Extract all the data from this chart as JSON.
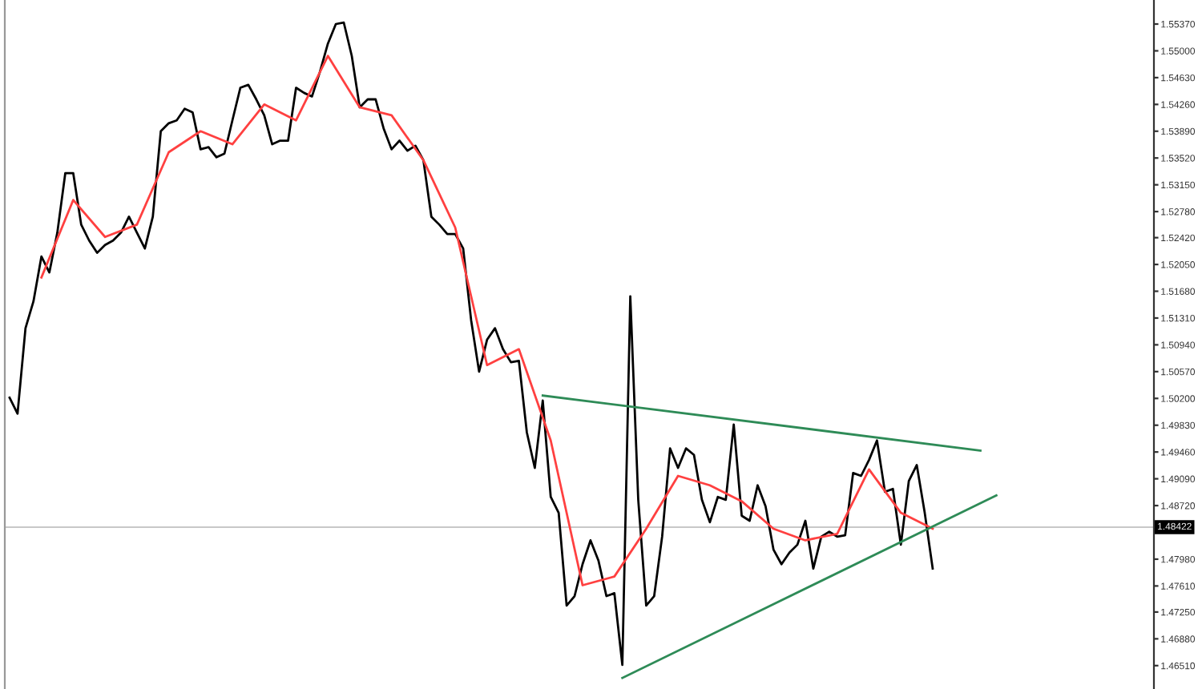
{
  "chart_data": {
    "type": "line",
    "categories": [
      null,
      null,
      null,
      null,
      null,
      null,
      null,
      null,
      null,
      null,
      null,
      null,
      null,
      null,
      null,
      null,
      null,
      null,
      null,
      null,
      null,
      null,
      null,
      null,
      null,
      null,
      null,
      null,
      null,
      null,
      null,
      null,
      null,
      null,
      null,
      null,
      null,
      null,
      null,
      null,
      null,
      null,
      null,
      null,
      null,
      null,
      null,
      null,
      null,
      null,
      null,
      null,
      null,
      null,
      null,
      null,
      null,
      null,
      null,
      null,
      null,
      null,
      null,
      null,
      null,
      null,
      null,
      null,
      null,
      null,
      null,
      null,
      null,
      null,
      null,
      null,
      null,
      null,
      null,
      null,
      null,
      null,
      null,
      null,
      null,
      null,
      null,
      null,
      null,
      null,
      null,
      null,
      null,
      null,
      null,
      null,
      null,
      null,
      null,
      null,
      null,
      null,
      null,
      null,
      null,
      null,
      null,
      null,
      null,
      null,
      null,
      null,
      null,
      null,
      null,
      null,
      null,
      null,
      null,
      null,
      null,
      null,
      null,
      null,
      null
    ],
    "series": [
      {
        "color": "#000000",
        "values": [
          1.5021,
          1.4999,
          1.5117,
          1.5154,
          1.5216,
          1.5194,
          1.5249,
          1.5331,
          1.5331,
          1.526,
          1.5238,
          1.5221,
          1.5232,
          1.5238,
          1.5249,
          1.5271,
          1.5249,
          1.5227,
          1.5271,
          1.5389,
          1.54,
          1.5404,
          1.542,
          1.5415,
          1.5364,
          1.5367,
          1.5353,
          1.5358,
          1.5404,
          1.5449,
          1.5453,
          1.5433,
          1.5411,
          1.5371,
          1.5376,
          1.5376,
          1.5449,
          1.5442,
          1.5437,
          1.5471,
          1.551,
          1.5537,
          1.5539,
          1.5493,
          1.5422,
          1.5433,
          1.5433,
          1.5393,
          1.5364,
          1.5376,
          1.5362,
          1.5369,
          1.5349,
          1.5271,
          1.526,
          1.5247,
          1.5247,
          1.5227,
          1.5128,
          1.5057,
          1.5101,
          1.5117,
          1.5088,
          1.507,
          1.5072,
          1.4973,
          1.4924,
          1.5017,
          1.4884,
          1.4862,
          1.4734,
          1.4747,
          1.4791,
          1.4824,
          1.4796,
          1.4747,
          1.4751,
          1.4652,
          1.5161,
          1.488,
          1.4734,
          1.4747,
          1.4829,
          1.4951,
          1.4924,
          1.4951,
          1.4942,
          1.488,
          1.4849,
          1.4884,
          1.488,
          1.4984,
          1.4858,
          1.4851,
          1.49,
          1.4871,
          1.4811,
          1.4791,
          1.4807,
          1.4818,
          1.4851,
          1.4785,
          1.4829,
          1.4836,
          1.4829,
          1.4831,
          1.4917,
          1.4913,
          1.4935,
          1.4962,
          1.4891,
          1.4895,
          1.4818,
          1.4906,
          1.4928,
          1.4862,
          1.4785,
          null,
          null,
          null,
          null,
          null,
          null,
          null,
          null
        ]
      },
      {
        "color": "#ff4040",
        "values": [
          null,
          null,
          null,
          null,
          1.5187,
          null,
          null,
          null,
          1.5294,
          null,
          null,
          null,
          1.5243,
          null,
          null,
          null,
          1.526,
          null,
          null,
          null,
          1.536,
          null,
          null,
          null,
          1.5389,
          null,
          null,
          null,
          1.5371,
          null,
          null,
          null,
          1.5426,
          null,
          null,
          null,
          1.5404,
          null,
          null,
          null,
          1.5493,
          null,
          null,
          null,
          1.5422,
          null,
          null,
          null,
          1.5411,
          null,
          null,
          null,
          1.5349,
          null,
          null,
          null,
          1.5256,
          null,
          null,
          null,
          1.5066,
          null,
          null,
          null,
          1.5088,
          null,
          null,
          null,
          1.4962,
          null,
          null,
          null,
          1.4762,
          null,
          null,
          null,
          1.4774,
          null,
          null,
          null,
          1.484,
          null,
          null,
          null,
          1.4913,
          null,
          null,
          null,
          1.49,
          null,
          null,
          null,
          1.4878,
          null,
          null,
          null,
          1.484,
          null,
          null,
          null,
          1.4824,
          null,
          null,
          null,
          1.4833,
          null,
          null,
          null,
          1.4922,
          null,
          null,
          null,
          1.4862,
          null,
          null,
          null,
          1.484,
          null,
          null,
          null,
          null,
          null,
          null,
          null,
          null
        ]
      },
      {
        "color": "#2e8b57",
        "values": [
          null,
          null,
          null,
          null,
          null,
          null,
          null,
          null,
          null,
          null,
          null,
          null,
          null,
          null,
          null,
          null,
          null,
          null,
          null,
          null,
          null,
          null,
          null,
          null,
          null,
          null,
          null,
          null,
          null,
          null,
          null,
          null,
          null,
          null,
          null,
          null,
          null,
          null,
          null,
          null,
          null,
          null,
          null,
          null,
          null,
          null,
          null,
          null,
          null,
          null,
          null,
          null,
          null,
          null,
          null,
          null,
          null,
          null,
          null,
          null,
          null,
          null,
          null,
          null,
          null,
          null,
          null,
          1.5024,
          null,
          null,
          null,
          null,
          null,
          null,
          null,
          null,
          null,
          null,
          null,
          null,
          null,
          null,
          null,
          null,
          null,
          null,
          null,
          null,
          null,
          null,
          null,
          null,
          null,
          null,
          null,
          null,
          null,
          null,
          null,
          null,
          null,
          null,
          null,
          null,
          null,
          null,
          null,
          null,
          null,
          null,
          null,
          null,
          null,
          null,
          null,
          null,
          null,
          null,
          null,
          null,
          null,
          null,
          1.4948,
          null,
          null
        ]
      },
      {
        "color": "#2e8b57",
        "values": [
          null,
          null,
          null,
          null,
          null,
          null,
          null,
          null,
          null,
          null,
          null,
          null,
          null,
          null,
          null,
          null,
          null,
          null,
          null,
          null,
          null,
          null,
          null,
          null,
          null,
          null,
          null,
          null,
          null,
          null,
          null,
          null,
          null,
          null,
          null,
          null,
          null,
          null,
          null,
          null,
          null,
          null,
          null,
          null,
          null,
          null,
          null,
          null,
          null,
          null,
          null,
          null,
          null,
          null,
          null,
          null,
          null,
          null,
          null,
          null,
          null,
          null,
          null,
          null,
          null,
          null,
          null,
          null,
          null,
          null,
          null,
          null,
          null,
          null,
          null,
          null,
          null,
          1.4634,
          null,
          null,
          null,
          null,
          null,
          null,
          null,
          null,
          null,
          null,
          null,
          null,
          null,
          null,
          null,
          null,
          null,
          null,
          null,
          null,
          null,
          null,
          null,
          null,
          null,
          null,
          null,
          null,
          null,
          null,
          null,
          null,
          null,
          null,
          null,
          null,
          null,
          null,
          null,
          null,
          null,
          null,
          null,
          null,
          null,
          null,
          1.4886
        ]
      }
    ],
    "ylim": [
      1.46187,
      1.55702
    ],
    "yticks": [
      {
        "value": 1.5537,
        "label": "1.55370"
      },
      {
        "value": 1.55,
        "label": "1.55000"
      },
      {
        "value": 1.5463,
        "label": "1.54630"
      },
      {
        "value": 1.5426,
        "label": "1.54260"
      },
      {
        "value": 1.5389,
        "label": "1.53890"
      },
      {
        "value": 1.5352,
        "label": "1.53520"
      },
      {
        "value": 1.5315,
        "label": "1.53150"
      },
      {
        "value": 1.5278,
        "label": "1.52780"
      },
      {
        "value": 1.5242,
        "label": "1.52420"
      },
      {
        "value": 1.5205,
        "label": "1.52050"
      },
      {
        "value": 1.5168,
        "label": "1.51680"
      },
      {
        "value": 1.5131,
        "label": "1.51310"
      },
      {
        "value": 1.5094,
        "label": "1.50940"
      },
      {
        "value": 1.5057,
        "label": "1.50570"
      },
      {
        "value": 1.502,
        "label": "1.50200"
      },
      {
        "value": 1.4983,
        "label": "1.49830"
      },
      {
        "value": 1.4946,
        "label": "1.49460"
      },
      {
        "value": 1.4909,
        "label": "1.49090"
      },
      {
        "value": 1.4872,
        "label": "1.48720"
      },
      {
        "value": 1.4798,
        "label": "1.47980"
      },
      {
        "value": 1.4761,
        "label": "1.47610"
      },
      {
        "value": 1.4725,
        "label": "1.47250"
      },
      {
        "value": 1.4688,
        "label": "1.46880"
      },
      {
        "value": 1.4651,
        "label": "1.46510"
      }
    ],
    "ref_lines": [
      {
        "axis": "y",
        "value": 1.48422,
        "label": "1.48422",
        "color": "#c8c8c8"
      }
    ],
    "marker": "none",
    "line_style": "solid",
    "grid": false
  }
}
